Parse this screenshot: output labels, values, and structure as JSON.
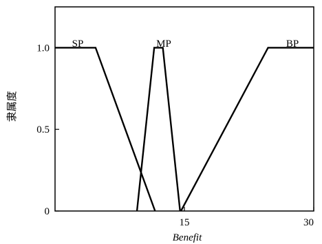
{
  "chart_data": {
    "type": "line",
    "title": "",
    "xlabel": "Benefit",
    "ylabel": "隶属度",
    "xlim": [
      0,
      30
    ],
    "ylim": [
      0,
      1.25
    ],
    "x_ticks": [
      {
        "value": 15,
        "label": "15"
      },
      {
        "value": 30,
        "label": "30"
      }
    ],
    "y_ticks": [
      {
        "value": 0,
        "label": "0"
      },
      {
        "value": 0.5,
        "label": "0.5"
      },
      {
        "value": 1.0,
        "label": "1.0"
      }
    ],
    "grid": false,
    "line_color": "#000000",
    "series": [
      {
        "name": "SP",
        "x": [
          0,
          4.7,
          11.6
        ],
        "y": [
          1,
          1,
          0
        ]
      },
      {
        "name": "MP",
        "x": [
          9.5,
          11.5,
          12.5,
          14.5
        ],
        "y": [
          0,
          1,
          1,
          0
        ]
      },
      {
        "name": "BP",
        "x": [
          14.6,
          24.7,
          30
        ],
        "y": [
          0,
          1,
          1
        ]
      }
    ]
  }
}
